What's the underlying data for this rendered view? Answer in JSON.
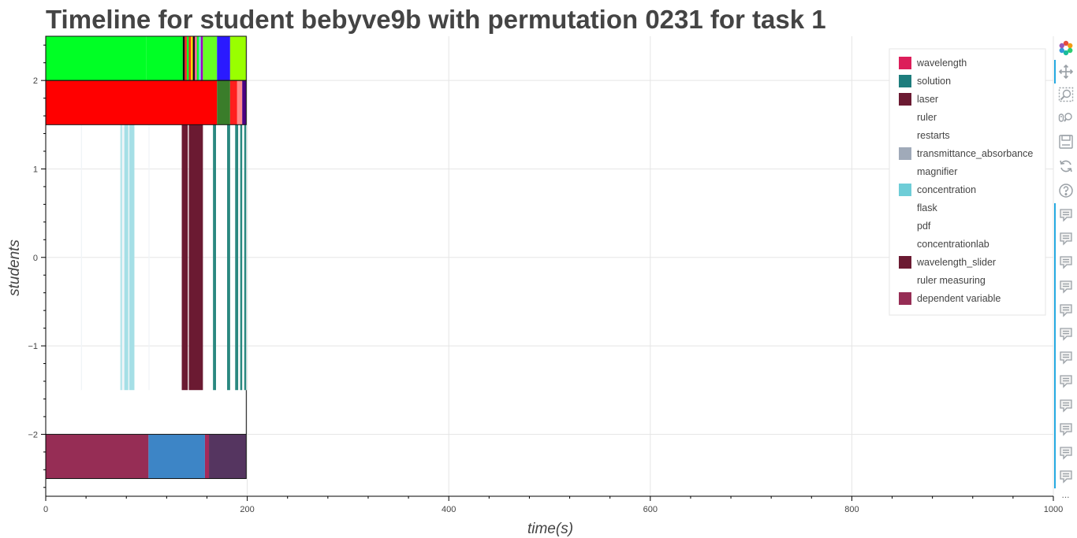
{
  "chart_data": {
    "type": "timeline",
    "title": "Timeline for student bebyve9b with permutation 0231 for task 1",
    "xlabel": "time(s)",
    "ylabel": "students",
    "xlim": [
      0,
      1000
    ],
    "ylim": [
      -2.7,
      2.5
    ],
    "x_ticks": [
      0,
      200,
      400,
      600,
      800,
      1000
    ],
    "y_ticks": [
      -2,
      -1,
      0,
      1,
      2
    ],
    "y_tick_labels": [
      "−2",
      "−1",
      "0",
      "1",
      "2"
    ],
    "grid": true,
    "legend_position": "top-right",
    "legend": [
      {
        "label": "wavelength",
        "color": "#dc1e5a"
      },
      {
        "label": "solution",
        "color": "#1e7d7d"
      },
      {
        "label": "laser",
        "color": "#6b1a32"
      },
      {
        "label": "ruler",
        "color": "#ffffff"
      },
      {
        "label": "restarts",
        "color": "#ffffff"
      },
      {
        "label": "transmittance_absorbance",
        "color": "#a0aab9"
      },
      {
        "label": "magnifier",
        "color": "#ffffff"
      },
      {
        "label": "concentration",
        "color": "#6ecdd7"
      },
      {
        "label": "flask",
        "color": "#ffffff"
      },
      {
        "label": "pdf",
        "color": "#ffffff"
      },
      {
        "label": "concentrationlab",
        "color": "#ffffff"
      },
      {
        "label": "wavelength_slider",
        "color": "#6b1a32"
      },
      {
        "label": "ruler measuring",
        "color": "#ffffff"
      },
      {
        "label": "dependent variable",
        "color": "#962d55"
      }
    ],
    "segments": [
      {
        "row": "top",
        "start": 0,
        "end": 100,
        "color": "#00ff25"
      },
      {
        "row": "top",
        "start": 100,
        "end": 136,
        "color": "#00ff25"
      },
      {
        "row": "top",
        "start": 136,
        "end": 138,
        "color": "#111111"
      },
      {
        "row": "top",
        "start": 138,
        "end": 140,
        "color": "#ff2020"
      },
      {
        "row": "top",
        "start": 140,
        "end": 142,
        "color": "#00ff25"
      },
      {
        "row": "top",
        "start": 142,
        "end": 144,
        "color": "#ff2020"
      },
      {
        "row": "top",
        "start": 144,
        "end": 146,
        "color": "#ffd700"
      },
      {
        "row": "top",
        "start": 146,
        "end": 148,
        "color": "#111111"
      },
      {
        "row": "top",
        "start": 148,
        "end": 150,
        "color": "#ff5a9a"
      },
      {
        "row": "top",
        "start": 150,
        "end": 152,
        "color": "#00ff25"
      },
      {
        "row": "top",
        "start": 152,
        "end": 154,
        "color": "#6ecdd7"
      },
      {
        "row": "top",
        "start": 154,
        "end": 156,
        "color": "#a000c0"
      },
      {
        "row": "top",
        "start": 156,
        "end": 170,
        "color": "#66ff22"
      },
      {
        "row": "top",
        "start": 170,
        "end": 183,
        "color": "#2a1aff"
      },
      {
        "row": "top",
        "start": 183,
        "end": 199,
        "color": "#99ff00"
      },
      {
        "row": "middle",
        "start": 0,
        "end": 170,
        "color": "#ff0000"
      },
      {
        "row": "middle",
        "start": 170,
        "end": 183,
        "color": "#3a7d2a"
      },
      {
        "row": "middle",
        "start": 183,
        "end": 190,
        "color": "#ff1e1e"
      },
      {
        "row": "middle",
        "start": 190,
        "end": 195,
        "color": "#ff8a8a"
      },
      {
        "row": "middle",
        "start": 195,
        "end": 199,
        "color": "#4b0082"
      },
      {
        "row": "band",
        "start": 35,
        "end": 36,
        "color": "#f0f4f7"
      },
      {
        "row": "band",
        "start": 74,
        "end": 76,
        "color": "#b9e6ec"
      },
      {
        "row": "band",
        "start": 76,
        "end": 78,
        "color": "#f0f4f7"
      },
      {
        "row": "band",
        "start": 78,
        "end": 82,
        "color": "#a5dfe6"
      },
      {
        "row": "band",
        "start": 82,
        "end": 83,
        "color": "#f0f4f7"
      },
      {
        "row": "band",
        "start": 83,
        "end": 88,
        "color": "#a5dfe6"
      },
      {
        "row": "band",
        "start": 102,
        "end": 103,
        "color": "#f0f4f7"
      },
      {
        "row": "band",
        "start": 135,
        "end": 141,
        "color": "#6b1a32"
      },
      {
        "row": "band",
        "start": 142,
        "end": 156,
        "color": "#6b1a32"
      },
      {
        "row": "band",
        "start": 166,
        "end": 169,
        "color": "#2a8880"
      },
      {
        "row": "band",
        "start": 180,
        "end": 183,
        "color": "#2a8880"
      },
      {
        "row": "band",
        "start": 188,
        "end": 191,
        "color": "#2a8880"
      },
      {
        "row": "band",
        "start": 193,
        "end": 195,
        "color": "#2a8880"
      },
      {
        "row": "band",
        "start": 197,
        "end": 199,
        "color": "#2a8880"
      },
      {
        "row": "bottom",
        "start": 0,
        "end": 102,
        "color": "#962d55"
      },
      {
        "row": "bottom",
        "start": 102,
        "end": 158,
        "color": "#3d85c6"
      },
      {
        "row": "bottom",
        "start": 158,
        "end": 162,
        "color": "#a52a5a"
      },
      {
        "row": "bottom",
        "start": 162,
        "end": 199,
        "color": "#553560"
      }
    ],
    "rows": {
      "top": {
        "y0": 2.0,
        "y1": 2.5
      },
      "middle": {
        "y0": 1.5,
        "y1": 2.0
      },
      "band": {
        "y0": -1.5,
        "y1": 1.5
      },
      "bottom": {
        "y0": -2.5,
        "y1": -2.0
      }
    },
    "frame_end": 199
  },
  "toolbar": {
    "items": [
      {
        "name": "bokeh-logo-icon",
        "kind": "logo"
      },
      {
        "name": "pan-icon",
        "kind": "tool",
        "active": true
      },
      {
        "name": "box-zoom-icon",
        "kind": "tool",
        "active": false
      },
      {
        "name": "wheel-zoom-icon",
        "kind": "tool",
        "active": false
      },
      {
        "name": "save-icon",
        "kind": "tool",
        "active": false
      },
      {
        "name": "reset-icon",
        "kind": "tool",
        "active": false
      },
      {
        "name": "help-icon",
        "kind": "tool",
        "active": false
      }
    ],
    "hover_tool_count": 12,
    "more_label": "..."
  }
}
